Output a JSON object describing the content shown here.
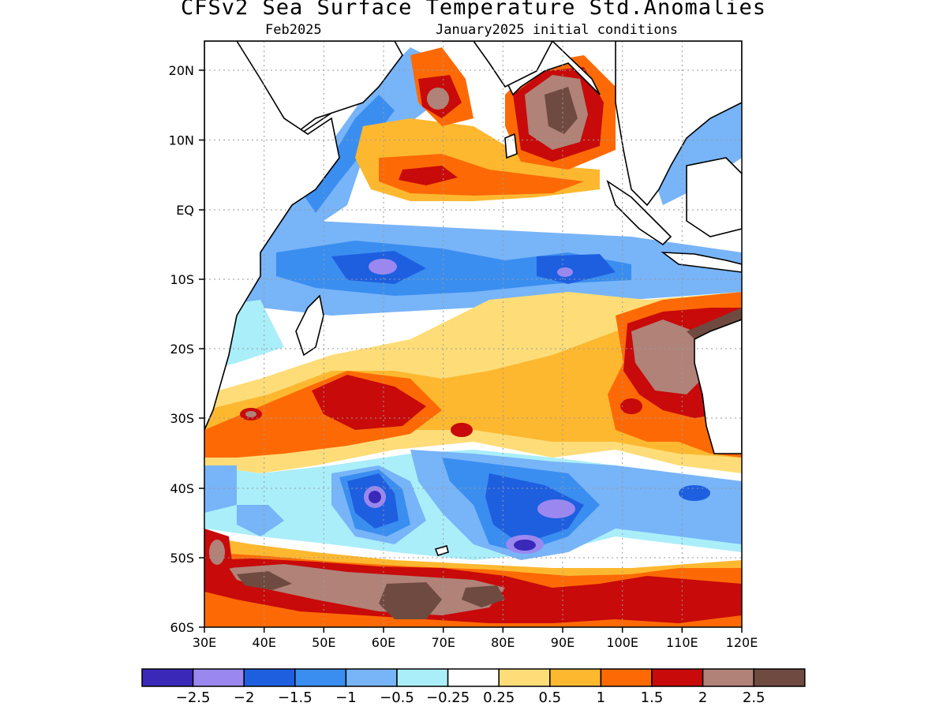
{
  "header": {
    "title": "CFSv2 Sea Surface Temperature Std.Anomalies",
    "target_month": "Feb2025",
    "initial_conditions": "January2025 initial conditions"
  },
  "map": {
    "lon_range": [
      30,
      120
    ],
    "lat_range": [
      -60,
      24
    ],
    "lon_ticks": [
      "30E",
      "40E",
      "50E",
      "60E",
      "70E",
      "80E",
      "90E",
      "100E",
      "110E",
      "120E"
    ],
    "lat_ticks": [
      "20N",
      "10N",
      "EQ",
      "10S",
      "20S",
      "30S",
      "40S",
      "50S",
      "60S"
    ],
    "land_color": "#ffffff",
    "coastline_color": "#000000",
    "grid": "dotted"
  },
  "colorbar": {
    "colors": [
      "#3a28b8",
      "#9a88f0",
      "#1e5fe0",
      "#3a8ef0",
      "#78b4f8",
      "#aaeefa",
      "#ffffff",
      "#fedd78",
      "#fdb830",
      "#fd6a05",
      "#c80a0a",
      "#b08278",
      "#6e4a40"
    ],
    "labels": [
      "−2.5",
      "−2",
      "−1.5",
      "−1",
      "−0.5",
      "−0.25",
      "0.25",
      "0.5",
      "1",
      "1.5",
      "2",
      "2.5"
    ]
  }
}
